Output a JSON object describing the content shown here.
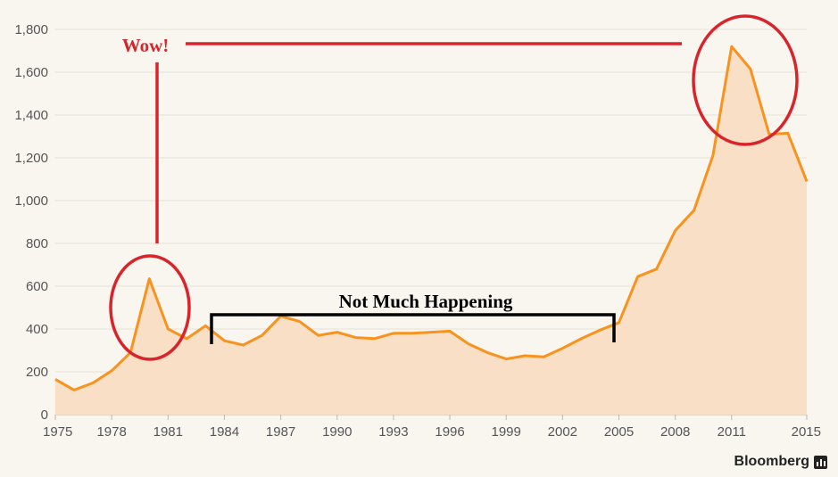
{
  "chart_data": {
    "type": "area",
    "title": "",
    "xlabel": "",
    "ylabel": "",
    "xlim": [
      1975,
      2015
    ],
    "ylim": [
      0,
      1800
    ],
    "grid": true,
    "x_ticks": [
      "1975",
      "1978",
      "1981",
      "1984",
      "1987",
      "1990",
      "1993",
      "1996",
      "1999",
      "2002",
      "2005",
      "2008",
      "2011",
      "2015"
    ],
    "x_tick_values": [
      1975,
      1978,
      1981,
      1984,
      1987,
      1990,
      1993,
      1996,
      1999,
      2002,
      2005,
      2008,
      2011,
      2015
    ],
    "y_ticks": [
      "0",
      "200",
      "400",
      "600",
      "800",
      "1,000",
      "1,200",
      "1,400",
      "1,600",
      "1,800"
    ],
    "y_tick_values": [
      0,
      200,
      400,
      600,
      800,
      1000,
      1200,
      1400,
      1600,
      1800
    ],
    "x": [
      1975,
      1976,
      1977,
      1978,
      1979,
      1980,
      1981,
      1982,
      1983,
      1984,
      1985,
      1986,
      1987,
      1988,
      1989,
      1990,
      1991,
      1992,
      1993,
      1994,
      1995,
      1996,
      1997,
      1998,
      1999,
      2000,
      2001,
      2002,
      2003,
      2004,
      2005,
      2006,
      2007,
      2008,
      2009,
      2010,
      2011,
      2012,
      2013,
      2014,
      2015
    ],
    "values": [
      165,
      115,
      148,
      205,
      290,
      635,
      400,
      355,
      415,
      345,
      325,
      370,
      460,
      435,
      370,
      385,
      360,
      355,
      380,
      380,
      385,
      390,
      330,
      290,
      260,
      275,
      270,
      310,
      355,
      395,
      430,
      645,
      680,
      860,
      955,
      1210,
      1720,
      1615,
      1310,
      1315,
      1090
    ],
    "line_color": "#f7931e",
    "fill_color": "#f8dfc6",
    "annotations": [
      {
        "text": "Wow!",
        "color": "#d8252b"
      },
      {
        "text": "Not Much Happening",
        "color": "#000000"
      }
    ]
  },
  "branding": {
    "name": "Bloomberg",
    "icon": "bar-chart-icon"
  },
  "colors": {
    "background": "#f8f6ef",
    "grid": "#e6e3da",
    "axis_text": "#555555",
    "annotation_red": "#d8252b"
  }
}
